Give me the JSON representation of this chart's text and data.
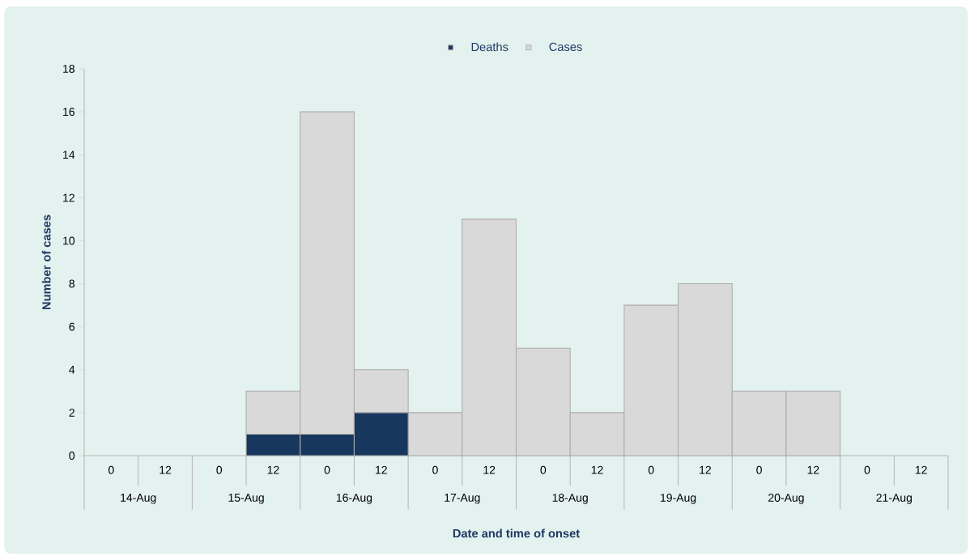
{
  "chart_data": {
    "type": "bar",
    "stacked": true,
    "xlabel": "Date and time of onset",
    "ylabel": "Number of cases",
    "categories": [
      "0",
      "12",
      "0",
      "12",
      "0",
      "12",
      "0",
      "12",
      "0",
      "12",
      "0",
      "12",
      "0",
      "12",
      "0",
      "12"
    ],
    "annotations": [
      "14-Aug",
      "15-Aug",
      "16-Aug",
      "17-Aug",
      "18-Aug",
      "19-Aug",
      "20-Aug",
      "21-Aug"
    ],
    "series": [
      {
        "name": "Deaths",
        "color": "#17375e",
        "values": [
          0,
          0,
          0,
          1,
          1,
          2,
          0,
          0,
          0,
          0,
          0,
          0,
          0,
          0,
          0,
          0
        ]
      },
      {
        "name": "Cases",
        "color": "#d9d9d9",
        "values": [
          0,
          0,
          0,
          2,
          15,
          2,
          2,
          11,
          5,
          2,
          7,
          8,
          3,
          3,
          0,
          0
        ]
      }
    ],
    "ylim": [
      0,
      18
    ],
    "yticks": [
      0,
      2,
      4,
      6,
      8,
      10,
      12,
      14,
      16,
      18
    ],
    "legend": "top",
    "grid": false
  }
}
